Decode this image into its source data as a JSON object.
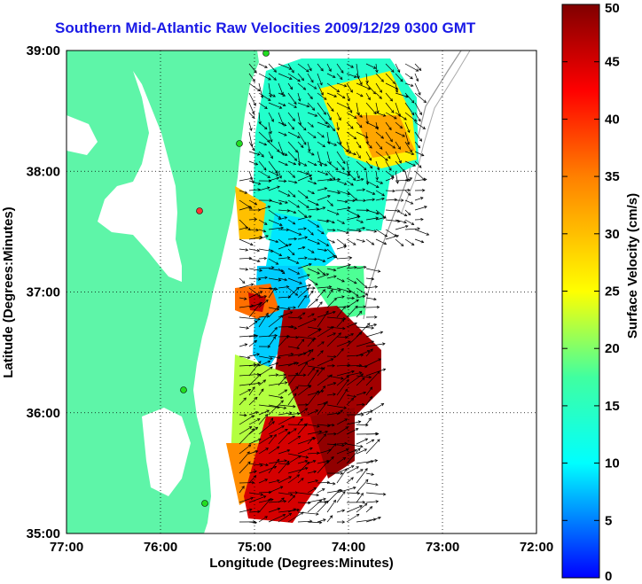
{
  "chart_data": {
    "type": "heatmap",
    "title": "Southern Mid-Atlantic Raw Velocities 2009/12/29 0300 GMT",
    "xlabel": "Longitude (Degrees:Minutes)",
    "ylabel": "Latitude (Degrees:Minutes)",
    "x_ticks": [
      "77:00",
      "76:00",
      "75:00",
      "74:00",
      "73:00",
      "72:00"
    ],
    "x_tick_values": [
      -77,
      -76,
      -75,
      -74,
      -73,
      -72
    ],
    "y_ticks": [
      "39:00",
      "38:00",
      "37:00",
      "36:00",
      "35:00"
    ],
    "y_tick_values": [
      39,
      38,
      37,
      36,
      35
    ],
    "xlim": [
      -77,
      -72
    ],
    "ylim": [
      35,
      39
    ],
    "grid": true,
    "colorbar": {
      "label": "Surface Velocity (cm/s)",
      "range": [
        0,
        50
      ],
      "ticks": [
        "0",
        "5",
        "10",
        "15",
        "20",
        "25",
        "30",
        "35",
        "40",
        "45",
        "50"
      ],
      "tick_values": [
        0,
        5,
        10,
        15,
        20,
        25,
        30,
        35,
        40,
        45,
        50
      ],
      "placement": "right"
    },
    "colors": {
      "land": "#5ef5a8",
      "ocean": "#ffffff",
      "arrows": "#000000",
      "stations": "#22dd22",
      "station_alert": "#ff3333"
    }
  }
}
